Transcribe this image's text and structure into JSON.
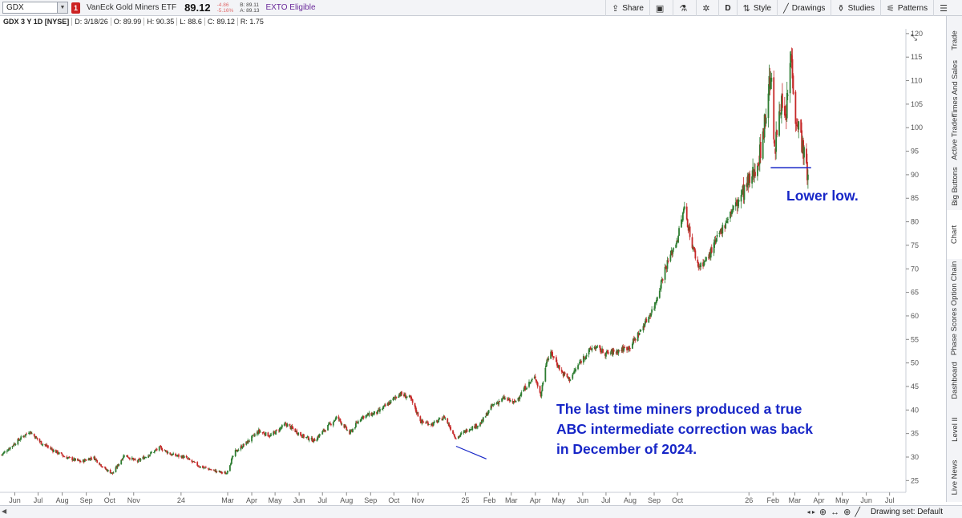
{
  "toolbar": {
    "symbol": "GDX",
    "alert_flag": "1",
    "instrument_name": "VanEck Gold Miners ETF",
    "last_price": "89.12",
    "change": "-4.86",
    "change_pct": "-5.16%",
    "bid": "B: 89.11",
    "ask": "A: 89.13",
    "exto": "EXTO Eligible",
    "share_label": "Share",
    "period_label": "D",
    "style_label": "Style",
    "drawings_label": "Drawings",
    "studies_label": "Studies",
    "patterns_label": "Patterns"
  },
  "infoline": {
    "title": "GDX 3 Y 1D [NYSE]",
    "date": "D: 3/18/26",
    "open": "O: 89.99",
    "high": "H: 90.35",
    "low": "L: 88.6",
    "close": "C: 89.12",
    "range": "R: 1.75"
  },
  "side_tabs": [
    "Trade",
    "Times And Sales",
    "Active Trader",
    "Big Buttons",
    "Chart",
    "Option Chain",
    "Phase Scores",
    "Dashboard",
    "Level II",
    "Live News"
  ],
  "annotations": {
    "lower_low": "Lower low.",
    "correction_line1": "The last time miners produced a true",
    "correction_line2": "ABC intermediate correction was back",
    "correction_line3": "in December of 2024."
  },
  "status": {
    "drawing_set": "Drawing set: Default"
  },
  "colors": {
    "up": "#2e7d32",
    "down": "#c62828",
    "annotation": "#1726c7"
  },
  "chart_data": {
    "type": "candlestick",
    "title": "GDX 3 Y 1D [NYSE]",
    "y_ticks": [
      25,
      30,
      35,
      40,
      45,
      50,
      55,
      60,
      65,
      70,
      75,
      80,
      85,
      90,
      95,
      100,
      105,
      110,
      115,
      120
    ],
    "ylim": [
      22.5,
      121
    ],
    "x_ticks": [
      "Jun",
      "Jul",
      "Aug",
      "Sep",
      "Oct",
      "Nov",
      "24",
      "Mar",
      "Apr",
      "May",
      "Jun",
      "Jul",
      "Aug",
      "Sep",
      "Oct",
      "Nov",
      "25",
      "Feb",
      "Mar",
      "Apr",
      "May",
      "Jun",
      "Jul",
      "Aug",
      "Sep",
      "Oct",
      "26",
      "Feb",
      "Mar",
      "Apr",
      "May",
      "Jun",
      "Jul"
    ],
    "price_path": [
      [
        "2023-05-15",
        30.5
      ],
      [
        "2023-06-05",
        33.5
      ],
      [
        "2023-06-20",
        35.5
      ],
      [
        "2023-07-05",
        33.0
      ],
      [
        "2023-07-20",
        31.5
      ],
      [
        "2023-08-05",
        30.0
      ],
      [
        "2023-08-25",
        29.0
      ],
      [
        "2023-09-10",
        30.0
      ],
      [
        "2023-09-25",
        27.5
      ],
      [
        "2023-10-05",
        26.5
      ],
      [
        "2023-10-20",
        30.5
      ],
      [
        "2023-11-05",
        29.0
      ],
      [
        "2023-11-20",
        30.5
      ],
      [
        "2023-12-05",
        32.0
      ],
      [
        "2023-12-20",
        30.5
      ],
      [
        "2024-01-05",
        30.0
      ],
      [
        "2024-01-25",
        28.0
      ],
      [
        "2024-02-15",
        27.0
      ],
      [
        "2024-02-28",
        26.5
      ],
      [
        "2024-03-10",
        31.0
      ],
      [
        "2024-03-25",
        33.0
      ],
      [
        "2024-04-10",
        35.5
      ],
      [
        "2024-04-25",
        34.5
      ],
      [
        "2024-05-15",
        37.0
      ],
      [
        "2024-06-05",
        34.5
      ],
      [
        "2024-06-20",
        33.5
      ],
      [
        "2024-07-05",
        36.0
      ],
      [
        "2024-07-20",
        38.5
      ],
      [
        "2024-08-05",
        35.0
      ],
      [
        "2024-08-20",
        38.5
      ],
      [
        "2024-09-10",
        39.5
      ],
      [
        "2024-09-25",
        41.5
      ],
      [
        "2024-10-08",
        43.5
      ],
      [
        "2024-10-22",
        42.5
      ],
      [
        "2024-11-05",
        37.5
      ],
      [
        "2024-11-20",
        37.0
      ],
      [
        "2024-12-05",
        38.5
      ],
      [
        "2024-12-20",
        34.0
      ],
      [
        "2025-01-05",
        36.0
      ],
      [
        "2025-01-20",
        37.0
      ],
      [
        "2025-02-05",
        41.0
      ],
      [
        "2025-02-20",
        42.5
      ],
      [
        "2025-03-05",
        41.5
      ],
      [
        "2025-03-20",
        45.0
      ],
      [
        "2025-04-01",
        47.0
      ],
      [
        "2025-04-08",
        43.0
      ],
      [
        "2025-04-15",
        50.5
      ],
      [
        "2025-04-22",
        52.0
      ],
      [
        "2025-05-05",
        48.0
      ],
      [
        "2025-05-15",
        46.5
      ],
      [
        "2025-06-01",
        51.0
      ],
      [
        "2025-06-15",
        53.5
      ],
      [
        "2025-07-01",
        52.0
      ],
      [
        "2025-07-15",
        52.5
      ],
      [
        "2025-08-01",
        53.5
      ],
      [
        "2025-08-15",
        57.0
      ],
      [
        "2025-09-01",
        62.0
      ],
      [
        "2025-09-15",
        70.0
      ],
      [
        "2025-10-01",
        76.5
      ],
      [
        "2025-10-10",
        83.0
      ],
      [
        "2025-10-20",
        75.0
      ],
      [
        "2025-10-28",
        70.5
      ],
      [
        "2025-11-08",
        72.0
      ],
      [
        "2025-11-20",
        76.0
      ],
      [
        "2025-12-05",
        81.0
      ],
      [
        "2025-12-20",
        85.0
      ],
      [
        "2026-01-05",
        89.5
      ],
      [
        "2026-01-15",
        94.5
      ],
      [
        "2026-01-22",
        102.0
      ],
      [
        "2026-01-29",
        112.0
      ],
      [
        "2026-02-03",
        94.0
      ],
      [
        "2026-02-10",
        106.0
      ],
      [
        "2026-02-17",
        101.0
      ],
      [
        "2026-02-24",
        115.5
      ],
      [
        "2026-03-02",
        103.0
      ],
      [
        "2026-03-09",
        98.0
      ],
      [
        "2026-03-13",
        94.0
      ],
      [
        "2026-03-18",
        89.12
      ]
    ],
    "horizontal_line": {
      "price": 91.5,
      "from": "2026-01-29",
      "to": "2026-03-22"
    },
    "trend_line": {
      "from": [
        "2024-12-20",
        32.3
      ],
      "to": [
        "2025-01-28",
        29.6
      ]
    }
  }
}
